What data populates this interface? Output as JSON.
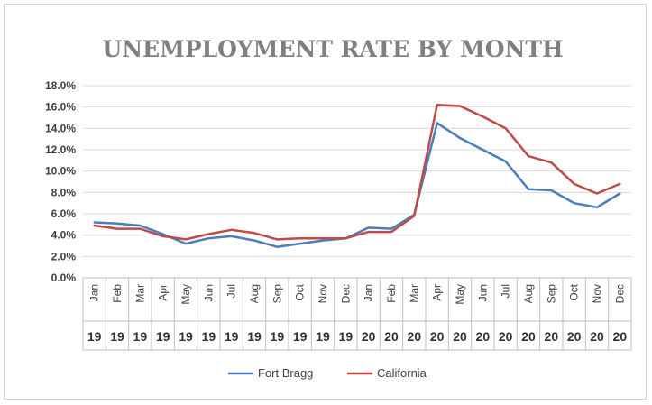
{
  "chart_data": {
    "type": "line",
    "title": "UNEMPLOYMENT RATE BY MONTH",
    "xlabel": "",
    "ylabel": "",
    "categories": [
      "Jan",
      "Feb",
      "Mar",
      "Apr",
      "May",
      "Jun",
      "Jul",
      "Aug",
      "Sep",
      "Oct",
      "Nov",
      "Dec",
      "Jan",
      "Feb",
      "Mar",
      "Apr",
      "May",
      "Jun",
      "Jul",
      "Aug",
      "Sep",
      "Oct",
      "Nov",
      "Dec"
    ],
    "years": [
      "19",
      "19",
      "19",
      "19",
      "19",
      "19",
      "19",
      "19",
      "19",
      "19",
      "19",
      "19",
      "20",
      "20",
      "20",
      "20",
      "20",
      "20",
      "20",
      "20",
      "20",
      "20",
      "20",
      "20"
    ],
    "ylim": [
      0,
      18
    ],
    "yticks": [
      "0.0%",
      "2.0%",
      "4.0%",
      "6.0%",
      "8.0%",
      "10.0%",
      "12.0%",
      "14.0%",
      "16.0%",
      "18.0%"
    ],
    "grid": true,
    "legend_position": "bottom",
    "series": [
      {
        "name": "Fort Bragg",
        "color": "#4a7ebb",
        "values": [
          5.2,
          5.1,
          4.9,
          4.1,
          3.2,
          3.7,
          3.9,
          3.5,
          2.9,
          3.2,
          3.5,
          3.7,
          4.7,
          4.6,
          5.9,
          14.5,
          13.1,
          12.0,
          10.9,
          8.3,
          8.2,
          7.0,
          6.6,
          7.9
        ]
      },
      {
        "name": "California",
        "color": "#be4b48",
        "values": [
          4.9,
          4.6,
          4.6,
          3.9,
          3.6,
          4.1,
          4.5,
          4.2,
          3.6,
          3.7,
          3.7,
          3.7,
          4.3,
          4.3,
          5.8,
          16.2,
          16.1,
          15.1,
          14.0,
          11.4,
          10.8,
          8.8,
          7.9,
          8.8
        ]
      }
    ]
  }
}
